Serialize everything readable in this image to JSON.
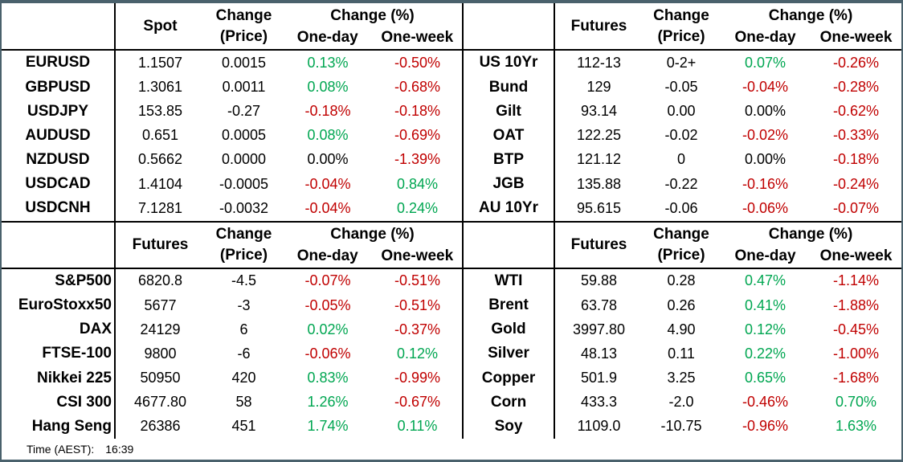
{
  "colors": {
    "positive": "#00A651",
    "negative": "#C00000",
    "neutral": "#000000",
    "frame": "#4A616C"
  },
  "headers": {
    "change_line1": "Change",
    "change_line2": "(Price)",
    "change_pct": "Change (%)",
    "one_day": "One-day",
    "one_week": "One-week"
  },
  "sections": {
    "fx": {
      "value_header": "Spot",
      "rows": [
        {
          "label": "EURUSD",
          "value": "1.1507",
          "change": "0.0015",
          "one_day": "0.13%",
          "one_week": "-0.50%"
        },
        {
          "label": "GBPUSD",
          "value": "1.3061",
          "change": "0.0011",
          "one_day": "0.08%",
          "one_week": "-0.68%"
        },
        {
          "label": "USDJPY",
          "value": "153.85",
          "change": "-0.27",
          "one_day": "-0.18%",
          "one_week": "-0.18%"
        },
        {
          "label": "AUDUSD",
          "value": "0.651",
          "change": "0.0005",
          "one_day": "0.08%",
          "one_week": "-0.69%"
        },
        {
          "label": "NZDUSD",
          "value": "0.5662",
          "change": "0.0000",
          "one_day": "0.00%",
          "one_week": "-1.39%"
        },
        {
          "label": "USDCAD",
          "value": "1.4104",
          "change": "-0.0005",
          "one_day": "-0.04%",
          "one_week": "0.84%"
        },
        {
          "label": "USDCNH",
          "value": "7.1281",
          "change": "-0.0032",
          "one_day": "-0.04%",
          "one_week": "0.24%"
        }
      ]
    },
    "bonds": {
      "value_header": "Futures",
      "rows": [
        {
          "label": "US 10Yr",
          "value": "112-13",
          "change": "0-2+",
          "one_day": "0.07%",
          "one_week": "-0.26%"
        },
        {
          "label": "Bund",
          "value": "129",
          "change": "-0.05",
          "one_day": "-0.04%",
          "one_week": "-0.28%"
        },
        {
          "label": "Gilt",
          "value": "93.14",
          "change": "0.00",
          "one_day": "0.00%",
          "one_week": "-0.62%"
        },
        {
          "label": "OAT",
          "value": "122.25",
          "change": "-0.02",
          "one_day": "-0.02%",
          "one_week": "-0.33%"
        },
        {
          "label": "BTP",
          "value": "121.12",
          "change": "0",
          "one_day": "0.00%",
          "one_week": "-0.18%"
        },
        {
          "label": "JGB",
          "value": "135.88",
          "change": "-0.22",
          "one_day": "-0.16%",
          "one_week": "-0.24%"
        },
        {
          "label": "AU 10Yr",
          "value": "95.615",
          "change": "-0.06",
          "one_day": "-0.06%",
          "one_week": "-0.07%"
        }
      ]
    },
    "equities": {
      "value_header": "Futures",
      "rows": [
        {
          "label": "S&P500",
          "value": "6820.8",
          "change": "-4.5",
          "one_day": "-0.07%",
          "one_week": "-0.51%"
        },
        {
          "label": "EuroStoxx50",
          "value": "5677",
          "change": "-3",
          "one_day": "-0.05%",
          "one_week": "-0.51%"
        },
        {
          "label": "DAX",
          "value": "24129",
          "change": "6",
          "one_day": "0.02%",
          "one_week": "-0.37%"
        },
        {
          "label": "FTSE-100",
          "value": "9800",
          "change": "-6",
          "one_day": "-0.06%",
          "one_week": "0.12%"
        },
        {
          "label": "Nikkei 225",
          "value": "50950",
          "change": "420",
          "one_day": "0.83%",
          "one_week": "-0.99%"
        },
        {
          "label": "CSI 300",
          "value": "4677.80",
          "change": "58",
          "one_day": "1.26%",
          "one_week": "-0.67%"
        },
        {
          "label": "Hang Seng",
          "value": "26386",
          "change": "451",
          "one_day": "1.74%",
          "one_week": "0.11%"
        }
      ]
    },
    "commodities": {
      "value_header": "Futures",
      "rows": [
        {
          "label": "WTI",
          "value": "59.88",
          "change": "0.28",
          "one_day": "0.47%",
          "one_week": "-1.14%"
        },
        {
          "label": "Brent",
          "value": "63.78",
          "change": "0.26",
          "one_day": "0.41%",
          "one_week": "-1.88%"
        },
        {
          "label": "Gold",
          "value": "3997.80",
          "change": "4.90",
          "one_day": "0.12%",
          "one_week": "-0.45%"
        },
        {
          "label": "Silver",
          "value": "48.13",
          "change": "0.11",
          "one_day": "0.22%",
          "one_week": "-1.00%"
        },
        {
          "label": "Copper",
          "value": "501.9",
          "change": "3.25",
          "one_day": "0.65%",
          "one_week": "-1.68%"
        },
        {
          "label": "Corn",
          "value": "433.3",
          "change": "-2.0",
          "one_day": "-0.46%",
          "one_week": "0.70%"
        },
        {
          "label": "Soy",
          "value": "1109.0",
          "change": "-10.75",
          "one_day": "-0.96%",
          "one_week": "1.63%"
        }
      ]
    }
  },
  "footer": {
    "time_label": "Time (AEST):",
    "time_value": "16:39"
  }
}
